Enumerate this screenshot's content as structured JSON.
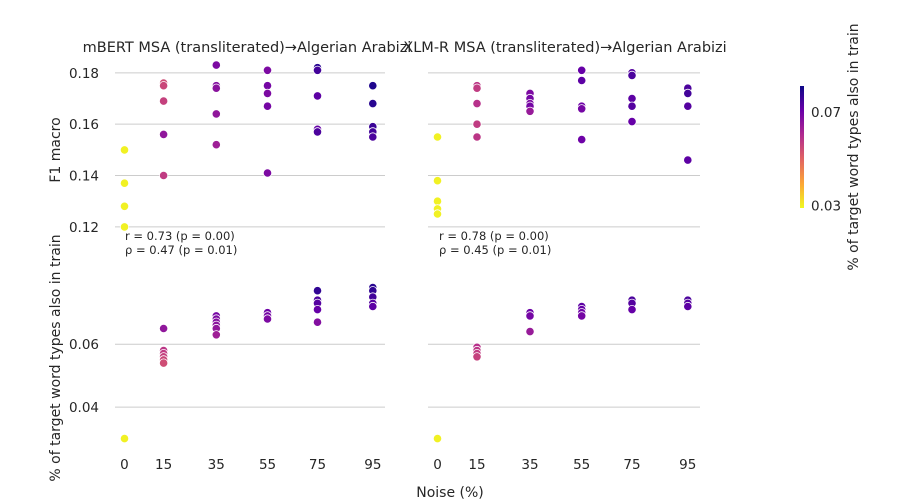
{
  "figure": {
    "common_xlabel": "Noise (%)",
    "colorbar": {
      "label": "% of target word types also in train",
      "ticks": [
        0.03,
        0.07
      ],
      "tick_labels": [
        "0.03",
        "0.07"
      ],
      "range": [
        0.029,
        0.081
      ],
      "colormap": "plasma_r",
      "colors": [
        "#f0f921",
        "#fca636",
        "#e16462",
        "#b12a90",
        "#6a00a8",
        "#0d0887"
      ]
    }
  },
  "chart_data": [
    {
      "type": "scatter",
      "title": "mBERT MSA (transliterated)→Algerian Arabizi",
      "xlabel": "",
      "ylabel": "F1 macro",
      "x_ticks": [
        "0",
        "15",
        "35",
        "55",
        "75",
        "95"
      ],
      "y_ticks": [
        "0.12",
        "0.14",
        "0.16",
        "0.18"
      ],
      "ylim": [
        0.118,
        0.185
      ],
      "annotation": [
        "r = 0.73 (p = 0.00)",
        "ρ = 0.47 (p = 0.01)"
      ],
      "points": [
        {
          "x": 0,
          "y": 0.15,
          "c": 0.03
        },
        {
          "x": 0,
          "y": 0.137,
          "c": 0.03
        },
        {
          "x": 0,
          "y": 0.128,
          "c": 0.03
        },
        {
          "x": 0,
          "y": 0.12,
          "c": 0.03
        },
        {
          "x": 15,
          "y": 0.176,
          "c": 0.054
        },
        {
          "x": 15,
          "y": 0.175,
          "c": 0.055
        },
        {
          "x": 15,
          "y": 0.169,
          "c": 0.056
        },
        {
          "x": 15,
          "y": 0.156,
          "c": 0.065
        },
        {
          "x": 15,
          "y": 0.14,
          "c": 0.057
        },
        {
          "x": 35,
          "y": 0.183,
          "c": 0.068
        },
        {
          "x": 35,
          "y": 0.175,
          "c": 0.067
        },
        {
          "x": 35,
          "y": 0.174,
          "c": 0.066
        },
        {
          "x": 35,
          "y": 0.164,
          "c": 0.065
        },
        {
          "x": 35,
          "y": 0.152,
          "c": 0.063
        },
        {
          "x": 55,
          "y": 0.181,
          "c": 0.068
        },
        {
          "x": 55,
          "y": 0.175,
          "c": 0.069
        },
        {
          "x": 55,
          "y": 0.172,
          "c": 0.068
        },
        {
          "x": 55,
          "y": 0.167,
          "c": 0.069
        },
        {
          "x": 55,
          "y": 0.141,
          "c": 0.068
        },
        {
          "x": 75,
          "y": 0.182,
          "c": 0.078
        },
        {
          "x": 75,
          "y": 0.181,
          "c": 0.075
        },
        {
          "x": 75,
          "y": 0.171,
          "c": 0.072
        },
        {
          "x": 75,
          "y": 0.158,
          "c": 0.071
        },
        {
          "x": 75,
          "y": 0.157,
          "c": 0.074
        },
        {
          "x": 95,
          "y": 0.175,
          "c": 0.079
        },
        {
          "x": 95,
          "y": 0.168,
          "c": 0.078
        },
        {
          "x": 95,
          "y": 0.159,
          "c": 0.076
        },
        {
          "x": 95,
          "y": 0.157,
          "c": 0.075
        },
        {
          "x": 95,
          "y": 0.155,
          "c": 0.074
        }
      ]
    },
    {
      "type": "scatter",
      "title": "XLM-R MSA (transliterated)→Algerian Arabizi",
      "xlabel": "",
      "ylabel": "",
      "x_ticks": [
        "0",
        "15",
        "35",
        "55",
        "75",
        "95"
      ],
      "y_ticks": [
        "0.12",
        "0.14",
        "0.16",
        "0.18"
      ],
      "ylim": [
        0.118,
        0.185
      ],
      "annotation": [
        "r = 0.78 (p = 0.00)",
        "ρ = 0.45 (p = 0.01)"
      ],
      "points": [
        {
          "x": 0,
          "y": 0.155,
          "c": 0.03
        },
        {
          "x": 0,
          "y": 0.138,
          "c": 0.03
        },
        {
          "x": 0,
          "y": 0.13,
          "c": 0.03
        },
        {
          "x": 0,
          "y": 0.127,
          "c": 0.03
        },
        {
          "x": 0,
          "y": 0.125,
          "c": 0.03
        },
        {
          "x": 15,
          "y": 0.175,
          "c": 0.058
        },
        {
          "x": 15,
          "y": 0.174,
          "c": 0.057
        },
        {
          "x": 15,
          "y": 0.168,
          "c": 0.059
        },
        {
          "x": 15,
          "y": 0.16,
          "c": 0.057
        },
        {
          "x": 15,
          "y": 0.155,
          "c": 0.058
        },
        {
          "x": 35,
          "y": 0.172,
          "c": 0.068
        },
        {
          "x": 35,
          "y": 0.17,
          "c": 0.069
        },
        {
          "x": 35,
          "y": 0.168,
          "c": 0.068
        },
        {
          "x": 35,
          "y": 0.167,
          "c": 0.069
        },
        {
          "x": 35,
          "y": 0.165,
          "c": 0.064
        },
        {
          "x": 55,
          "y": 0.181,
          "c": 0.071
        },
        {
          "x": 55,
          "y": 0.177,
          "c": 0.072
        },
        {
          "x": 55,
          "y": 0.167,
          "c": 0.07
        },
        {
          "x": 55,
          "y": 0.166,
          "c": 0.069
        },
        {
          "x": 55,
          "y": 0.154,
          "c": 0.07
        },
        {
          "x": 75,
          "y": 0.18,
          "c": 0.073
        },
        {
          "x": 75,
          "y": 0.179,
          "c": 0.074
        },
        {
          "x": 75,
          "y": 0.17,
          "c": 0.072
        },
        {
          "x": 75,
          "y": 0.167,
          "c": 0.073
        },
        {
          "x": 75,
          "y": 0.161,
          "c": 0.071
        },
        {
          "x": 95,
          "y": 0.174,
          "c": 0.074
        },
        {
          "x": 95,
          "y": 0.172,
          "c": 0.075
        },
        {
          "x": 95,
          "y": 0.167,
          "c": 0.073
        },
        {
          "x": 95,
          "y": 0.146,
          "c": 0.072
        }
      ]
    },
    {
      "type": "scatter",
      "title": "",
      "xlabel": "",
      "ylabel": "% of target word types also in train",
      "x_ticks": [
        "0",
        "15",
        "35",
        "55",
        "75",
        "95"
      ],
      "y_ticks": [
        "0.04",
        "0.06"
      ],
      "ylim": [
        0.027,
        0.082
      ],
      "annotation": [],
      "points": [
        {
          "x": 0,
          "y": 0.03,
          "c": 0.03
        },
        {
          "x": 15,
          "y": 0.065,
          "c": 0.065
        },
        {
          "x": 15,
          "y": 0.058,
          "c": 0.058
        },
        {
          "x": 15,
          "y": 0.057,
          "c": 0.057
        },
        {
          "x": 15,
          "y": 0.056,
          "c": 0.056
        },
        {
          "x": 15,
          "y": 0.055,
          "c": 0.055
        },
        {
          "x": 15,
          "y": 0.054,
          "c": 0.054
        },
        {
          "x": 35,
          "y": 0.069,
          "c": 0.069
        },
        {
          "x": 35,
          "y": 0.068,
          "c": 0.068
        },
        {
          "x": 35,
          "y": 0.067,
          "c": 0.067
        },
        {
          "x": 35,
          "y": 0.066,
          "c": 0.066
        },
        {
          "x": 35,
          "y": 0.065,
          "c": 0.065
        },
        {
          "x": 35,
          "y": 0.063,
          "c": 0.063
        },
        {
          "x": 55,
          "y": 0.07,
          "c": 0.07
        },
        {
          "x": 55,
          "y": 0.069,
          "c": 0.069
        },
        {
          "x": 55,
          "y": 0.068,
          "c": 0.068
        },
        {
          "x": 75,
          "y": 0.077,
          "c": 0.077
        },
        {
          "x": 75,
          "y": 0.074,
          "c": 0.074
        },
        {
          "x": 75,
          "y": 0.073,
          "c": 0.073
        },
        {
          "x": 75,
          "y": 0.071,
          "c": 0.071
        },
        {
          "x": 75,
          "y": 0.067,
          "c": 0.067
        },
        {
          "x": 95,
          "y": 0.078,
          "c": 0.078
        },
        {
          "x": 95,
          "y": 0.077,
          "c": 0.077
        },
        {
          "x": 95,
          "y": 0.075,
          "c": 0.075
        },
        {
          "x": 95,
          "y": 0.073,
          "c": 0.073
        },
        {
          "x": 95,
          "y": 0.072,
          "c": 0.072
        }
      ]
    },
    {
      "type": "scatter",
      "title": "",
      "xlabel": "",
      "ylabel": "",
      "x_ticks": [
        "0",
        "15",
        "35",
        "55",
        "75",
        "95"
      ],
      "y_ticks": [
        "0.04",
        "0.06"
      ],
      "ylim": [
        0.027,
        0.082
      ],
      "annotation": [],
      "points": [
        {
          "x": 0,
          "y": 0.03,
          "c": 0.03
        },
        {
          "x": 15,
          "y": 0.059,
          "c": 0.059
        },
        {
          "x": 15,
          "y": 0.058,
          "c": 0.058
        },
        {
          "x": 15,
          "y": 0.057,
          "c": 0.057
        },
        {
          "x": 15,
          "y": 0.056,
          "c": 0.056
        },
        {
          "x": 35,
          "y": 0.07,
          "c": 0.07
        },
        {
          "x": 35,
          "y": 0.069,
          "c": 0.069
        },
        {
          "x": 35,
          "y": 0.064,
          "c": 0.064
        },
        {
          "x": 55,
          "y": 0.072,
          "c": 0.072
        },
        {
          "x": 55,
          "y": 0.071,
          "c": 0.071
        },
        {
          "x": 55,
          "y": 0.07,
          "c": 0.07
        },
        {
          "x": 55,
          "y": 0.069,
          "c": 0.069
        },
        {
          "x": 75,
          "y": 0.074,
          "c": 0.074
        },
        {
          "x": 75,
          "y": 0.073,
          "c": 0.073
        },
        {
          "x": 75,
          "y": 0.071,
          "c": 0.071
        },
        {
          "x": 95,
          "y": 0.074,
          "c": 0.074
        },
        {
          "x": 95,
          "y": 0.073,
          "c": 0.073
        },
        {
          "x": 95,
          "y": 0.072,
          "c": 0.072
        }
      ]
    }
  ]
}
